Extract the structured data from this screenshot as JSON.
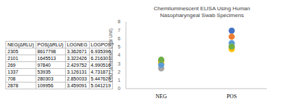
{
  "table": {
    "header": [
      "NEG(ΔRLU)",
      "POS(ΔRLU)",
      "LOGNEG",
      "LOGPOS"
    ],
    "rows": [
      [
        "2305",
        "8617798",
        "3.362671",
        "6.935396"
      ],
      [
        "2101",
        "1645513",
        "3.322426",
        "6.216301"
      ],
      [
        "269",
        "97840",
        "2.429752",
        "4.990516"
      ],
      [
        "1337",
        "53935",
        "3.126131",
        "4.731871"
      ],
      [
        "708",
        "280303",
        "2.850033",
        "5.447628"
      ],
      [
        "2878",
        "109956",
        "3.459091",
        "5.041219"
      ]
    ]
  },
  "chart_data": {
    "type": "scatter",
    "title": "Chemiluminescent ELISA Using Human Nasopharyngeal Swab Specimens",
    "y_label": "LOG (Δ Relative Light Unit)",
    "categories": [
      "NEG",
      "POS"
    ],
    "series": [
      {
        "color": "#4472c4",
        "values": [
          3.362671,
          6.935396
        ]
      },
      {
        "color": "#ed7d31",
        "values": [
          3.322426,
          6.216301
        ]
      },
      {
        "color": "#a5a5a5",
        "values": [
          2.429752,
          4.990516
        ]
      },
      {
        "color": "#ffc000",
        "values": [
          3.126131,
          4.731871
        ]
      },
      {
        "color": "#5b9bd5",
        "values": [
          2.850033,
          5.447628
        ]
      },
      {
        "color": "#70ad47",
        "values": [
          3.459091,
          5.041219
        ]
      }
    ],
    "ylim": [
      0,
      8
    ],
    "yticks": [
      0,
      1,
      2,
      3,
      4,
      5,
      6,
      7,
      8
    ],
    "grid": false,
    "marker": "circle"
  }
}
